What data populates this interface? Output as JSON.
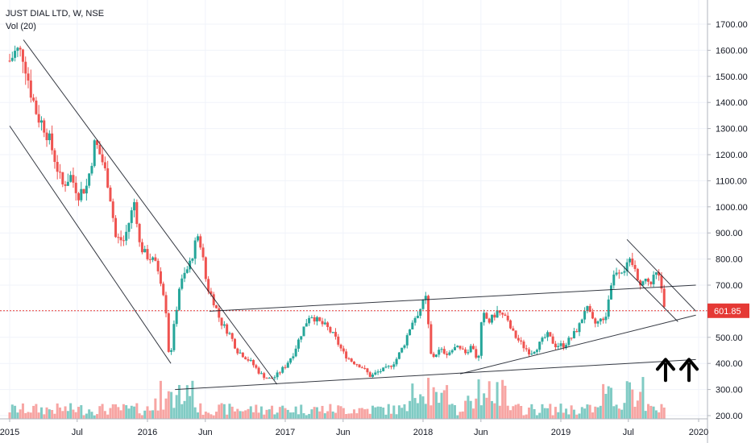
{
  "header": {
    "symbol_line": "JUST DIAL LTD, W, NSE",
    "indicator_line": "Vol (20)"
  },
  "colors": {
    "up": "#26a69a",
    "down": "#ef5350",
    "vol_up": "#80cbc4",
    "vol_down": "#f7a5a3",
    "trendline": "#131722",
    "last_price_line": "#e53935"
  },
  "chart_data": {
    "type": "candlestick",
    "symbol": "JUST DIAL LTD",
    "interval": "W",
    "exchange": "NSE",
    "indicator": "Vol (20)",
    "last_price": "601.85",
    "x_ticks": [
      "2015",
      "Jul",
      "2016",
      "Jun",
      "2017",
      "Jun",
      "2018",
      "Jun",
      "2019",
      "Jul",
      "2020"
    ],
    "y_ticks": [
      "1700.00",
      "1600.00",
      "1500.00",
      "1400.00",
      "1300.00",
      "1200.00",
      "1100.00",
      "1000.00",
      "900.00",
      "800.00",
      "700.00",
      "600.00",
      "500.00",
      "400.00",
      "300.00",
      "200.00"
    ],
    "ylim": [
      185,
      1745
    ],
    "close_path": [
      [
        2015.0,
        1560
      ],
      [
        2015.05,
        1600
      ],
      [
        2015.1,
        1580
      ],
      [
        2015.15,
        1450
      ],
      [
        2015.2,
        1350
      ],
      [
        2015.26,
        1300
      ],
      [
        2015.32,
        1200
      ],
      [
        2015.38,
        1080
      ],
      [
        2015.44,
        1120
      ],
      [
        2015.5,
        1050
      ],
      [
        2015.56,
        1080
      ],
      [
        2015.62,
        1250
      ],
      [
        2015.67,
        1180
      ],
      [
        2015.72,
        1080
      ],
      [
        2015.77,
        880
      ],
      [
        2015.83,
        870
      ],
      [
        2015.87,
        950
      ],
      [
        2015.91,
        1030
      ],
      [
        2015.94,
        860
      ],
      [
        2015.98,
        820
      ],
      [
        2016.03,
        800
      ],
      [
        2016.08,
        760
      ],
      [
        2016.13,
        640
      ],
      [
        2016.16,
        400
      ],
      [
        2016.19,
        530
      ],
      [
        2016.23,
        690
      ],
      [
        2016.27,
        740
      ],
      [
        2016.3,
        770
      ],
      [
        2016.35,
        860
      ],
      [
        2016.38,
        880
      ],
      [
        2016.43,
        700
      ],
      [
        2016.48,
        640
      ],
      [
        2016.53,
        560
      ],
      [
        2016.6,
        510
      ],
      [
        2016.65,
        450
      ],
      [
        2016.7,
        430
      ],
      [
        2016.76,
        400
      ],
      [
        2016.82,
        360
      ],
      [
        2016.88,
        340
      ],
      [
        2016.93,
        350
      ],
      [
        2017.0,
        390
      ],
      [
        2017.06,
        440
      ],
      [
        2017.12,
        520
      ],
      [
        2017.18,
        590
      ],
      [
        2017.24,
        560
      ],
      [
        2017.3,
        540
      ],
      [
        2017.36,
        500
      ],
      [
        2017.42,
        440
      ],
      [
        2017.48,
        410
      ],
      [
        2017.55,
        390
      ],
      [
        2017.62,
        350
      ],
      [
        2017.68,
        370
      ],
      [
        2017.74,
        380
      ],
      [
        2017.8,
        410
      ],
      [
        2017.86,
        470
      ],
      [
        2017.92,
        560
      ],
      [
        2017.97,
        600
      ],
      [
        2018.02,
        650
      ],
      [
        2018.06,
        420
      ],
      [
        2018.12,
        450
      ],
      [
        2018.18,
        440
      ],
      [
        2018.24,
        460
      ],
      [
        2018.3,
        440
      ],
      [
        2018.36,
        470
      ],
      [
        2018.4,
        400
      ],
      [
        2018.43,
        590
      ],
      [
        2018.48,
        560
      ],
      [
        2018.54,
        600
      ],
      [
        2018.6,
        570
      ],
      [
        2018.66,
        510
      ],
      [
        2018.72,
        470
      ],
      [
        2018.78,
        440
      ],
      [
        2018.84,
        470
      ],
      [
        2018.9,
        510
      ],
      [
        2018.96,
        470
      ],
      [
        2019.02,
        470
      ],
      [
        2019.08,
        500
      ],
      [
        2019.14,
        550
      ],
      [
        2019.18,
        620
      ],
      [
        2019.24,
        550
      ],
      [
        2019.28,
        560
      ],
      [
        2019.33,
        590
      ],
      [
        2019.36,
        700
      ],
      [
        2019.4,
        760
      ],
      [
        2019.44,
        760
      ],
      [
        2019.48,
        770
      ],
      [
        2019.51,
        790
      ],
      [
        2019.55,
        740
      ],
      [
        2019.58,
        710
      ],
      [
        2019.62,
        720
      ],
      [
        2019.65,
        700
      ],
      [
        2019.69,
        740
      ],
      [
        2019.72,
        720
      ],
      [
        2019.76,
        600
      ]
    ],
    "volume_scale": {
      "min": 0,
      "max": 100
    },
    "trendlines": [
      {
        "name": "upper-channel-2015",
        "from": [
          2015.1,
          1640
        ],
        "to": [
          2016.94,
          320
        ]
      },
      {
        "name": "lower-channel-2015",
        "from": [
          2015.0,
          1310
        ],
        "to": [
          2016.17,
          400
        ]
      },
      {
        "name": "base-support-line",
        "from": [
          2016.2,
          300
        ],
        "to": [
          2019.98,
          415
        ]
      },
      {
        "name": "range-upper-line",
        "from": [
          2016.45,
          600
        ],
        "to": [
          2019.98,
          700
        ]
      },
      {
        "name": "rising-support-line",
        "from": [
          2018.27,
          360
        ],
        "to": [
          2019.98,
          585
        ]
      },
      {
        "name": "falling-channel-upper",
        "from": [
          2019.48,
          875
        ],
        "to": [
          2019.98,
          600
        ]
      },
      {
        "name": "falling-channel-lower",
        "from": [
          2019.4,
          800
        ],
        "to": [
          2019.85,
          560
        ]
      }
    ],
    "annotations": [
      {
        "type": "arrow-up",
        "x": 2019.76,
        "y_bottom": 335,
        "y_top": 415
      },
      {
        "type": "arrow-up",
        "x": 2019.93,
        "y_bottom": 335,
        "y_top": 415
      }
    ],
    "grid": true,
    "legend": "top-left"
  }
}
